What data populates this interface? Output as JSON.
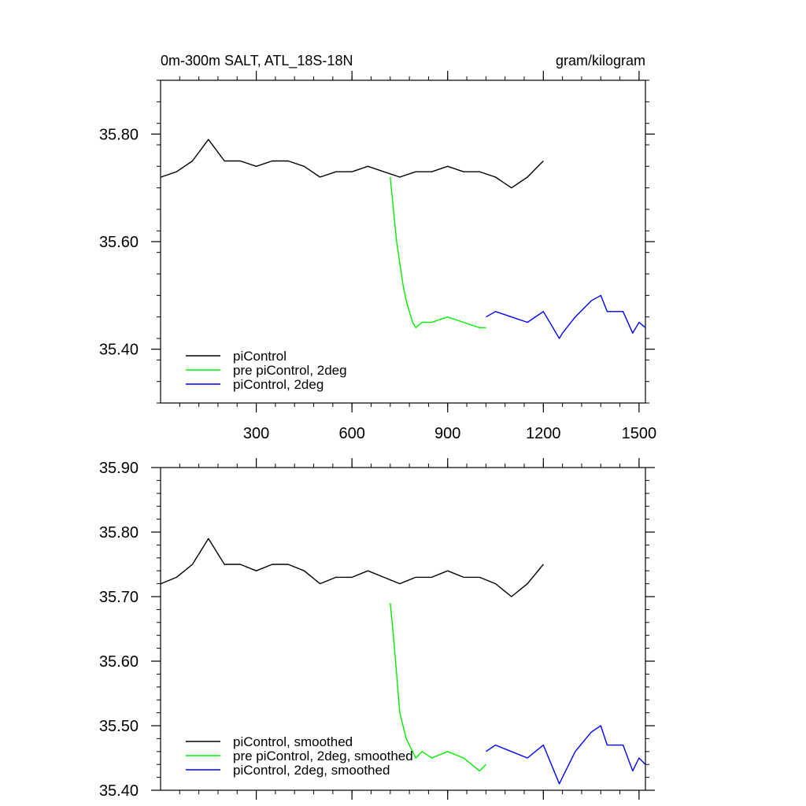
{
  "figure": {
    "title_left": "0m-300m SALT, ATL_18S-18N",
    "title_right": "gram/kilogram"
  },
  "chart_data": [
    {
      "type": "line",
      "name": "raw",
      "xlim": [
        0,
        1520
      ],
      "ylim": [
        35.3,
        35.9
      ],
      "x_ticks": [
        300,
        600,
        900,
        1200,
        1500
      ],
      "y_ticks": [
        35.4,
        35.6,
        35.8
      ],
      "y_tick_labels": [
        "35.40",
        "35.60",
        "35.80"
      ],
      "x_tick_labels": [
        "300",
        "600",
        "900",
        "1200",
        "1500"
      ],
      "legend_position": "bottom-left",
      "series": [
        {
          "name": "piControl",
          "color": "#000000",
          "x": [
            1,
            50,
            100,
            150,
            200,
            250,
            300,
            350,
            400,
            450,
            500,
            550,
            600,
            650,
            700,
            750,
            800,
            850,
            900,
            950,
            1000,
            1050,
            1100,
            1150,
            1200
          ],
          "y": [
            35.72,
            35.73,
            35.75,
            35.79,
            35.75,
            35.75,
            35.74,
            35.75,
            35.75,
            35.74,
            35.72,
            35.73,
            35.73,
            35.74,
            35.73,
            35.72,
            35.73,
            35.73,
            35.74,
            35.73,
            35.73,
            35.72,
            35.7,
            35.72,
            35.75
          ]
        },
        {
          "name": "pre piControl, 2deg",
          "color": "#00ee00",
          "x": [
            720,
            730,
            740,
            750,
            760,
            770,
            780,
            790,
            800,
            820,
            850,
            900,
            950,
            1000,
            1020
          ],
          "y": [
            35.72,
            35.66,
            35.6,
            35.56,
            35.52,
            35.49,
            35.47,
            35.45,
            35.44,
            35.45,
            35.45,
            35.46,
            35.45,
            35.44,
            35.44
          ]
        },
        {
          "name": "piControl, 2deg",
          "color": "#0000ff",
          "x": [
            1020,
            1050,
            1100,
            1150,
            1200,
            1250,
            1260,
            1300,
            1350,
            1380,
            1400,
            1450,
            1480,
            1500,
            1520
          ],
          "y": [
            35.46,
            35.47,
            35.46,
            35.45,
            35.47,
            35.42,
            35.43,
            35.46,
            35.49,
            35.5,
            35.47,
            35.47,
            35.43,
            35.45,
            35.44
          ]
        }
      ]
    },
    {
      "type": "line",
      "name": "smoothed",
      "xlim": [
        0,
        1520
      ],
      "ylim": [
        35.4,
        35.9
      ],
      "x_ticks": [
        300,
        600,
        900,
        1200,
        1500
      ],
      "y_ticks": [
        35.4,
        35.5,
        35.6,
        35.7,
        35.8,
        35.9
      ],
      "y_tick_labels": [
        "35.40",
        "35.50",
        "35.60",
        "35.70",
        "35.80",
        "35.90"
      ],
      "legend_position": "bottom-left",
      "series": [
        {
          "name": "piControl, smoothed",
          "color": "#000000",
          "x": [
            1,
            50,
            100,
            150,
            200,
            250,
            300,
            350,
            400,
            450,
            500,
            550,
            600,
            650,
            700,
            750,
            800,
            850,
            900,
            950,
            1000,
            1050,
            1100,
            1150,
            1200
          ],
          "y": [
            35.72,
            35.73,
            35.75,
            35.79,
            35.75,
            35.75,
            35.74,
            35.75,
            35.75,
            35.74,
            35.72,
            35.73,
            35.73,
            35.74,
            35.73,
            35.72,
            35.73,
            35.73,
            35.74,
            35.73,
            35.73,
            35.72,
            35.7,
            35.72,
            35.75
          ]
        },
        {
          "name": "pre piControl, 2deg, smoothed",
          "color": "#00ee00",
          "x": [
            720,
            730,
            740,
            750,
            760,
            770,
            780,
            790,
            800,
            820,
            850,
            900,
            950,
            1000,
            1020
          ],
          "y": [
            35.69,
            35.64,
            35.58,
            35.52,
            35.5,
            35.48,
            35.47,
            35.46,
            35.45,
            35.46,
            35.45,
            35.46,
            35.45,
            35.43,
            35.44
          ]
        },
        {
          "name": "piControl, 2deg, smoothed",
          "color": "#0000ff",
          "x": [
            1020,
            1050,
            1100,
            1150,
            1200,
            1250,
            1260,
            1300,
            1350,
            1380,
            1400,
            1450,
            1480,
            1500,
            1520
          ],
          "y": [
            35.46,
            35.47,
            35.46,
            35.45,
            35.47,
            35.41,
            35.42,
            35.46,
            35.49,
            35.5,
            35.47,
            35.47,
            35.43,
            35.45,
            35.44
          ]
        }
      ]
    }
  ]
}
